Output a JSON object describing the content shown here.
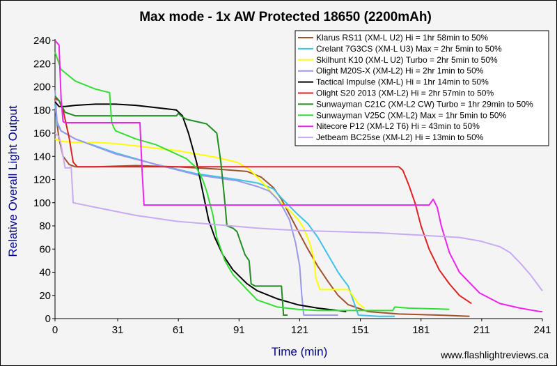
{
  "chart_data": {
    "type": "line",
    "title": "Max mode - 1x AW Protected 18650 (2200mAh)",
    "xlabel": "Time (min)",
    "ylabel": "Relative Overall Light Output",
    "xlim": [
      0,
      241
    ],
    "ylim": [
      0,
      240
    ],
    "xticks": [
      0,
      31,
      61,
      91,
      121,
      151,
      181,
      211,
      241
    ],
    "yticks": [
      0,
      20,
      40,
      60,
      80,
      100,
      120,
      140,
      160,
      180,
      200,
      220,
      240
    ],
    "grid": false,
    "legend_position": "top-right",
    "credit": "www.flashlightreviews.ca",
    "series": [
      {
        "name": "Klarus RS11 (XM-L U2) Hi = 1hr 58min to 50%",
        "color": "#a0522d",
        "x": [
          0,
          1,
          2,
          4,
          7,
          10,
          20,
          40,
          60,
          80,
          95,
          102,
          108,
          112,
          115,
          118,
          121,
          125,
          130,
          135,
          140,
          145,
          155,
          170,
          190,
          205
        ],
        "y": [
          190,
          168,
          155,
          140,
          133,
          131,
          131,
          132,
          131,
          129,
          127,
          122,
          113,
          103,
          93,
          83,
          73,
          60,
          45,
          32,
          20,
          12,
          6,
          4,
          3,
          2
        ]
      },
      {
        "name": "Crelant 7G3CS (XM-L U3) Max = 2hr 5min to 50%",
        "color": "#40c0e8",
        "x": [
          0,
          1,
          3,
          10,
          30,
          50,
          70,
          90,
          100,
          108,
          112,
          116,
          120,
          125,
          130,
          135,
          140,
          142,
          145,
          150,
          160,
          168
        ],
        "y": [
          185,
          168,
          162,
          155,
          143,
          133,
          125,
          120,
          117,
          112,
          104,
          97,
          90,
          82,
          70,
          55,
          40,
          35,
          28,
          3,
          2,
          2
        ]
      },
      {
        "name": "Skilhunt K10 (XM-L U2) Turbo = 2hr 5min to 50%",
        "color": "#ffff00",
        "x": [
          0,
          3,
          10,
          20,
          30,
          40,
          50,
          60,
          70,
          80,
          90,
          96,
          100,
          105,
          110,
          115,
          120,
          123,
          126,
          128,
          129,
          131,
          140,
          145,
          150,
          153
        ],
        "y": [
          155,
          153,
          152,
          152,
          151,
          149,
          147,
          145,
          142,
          139,
          135,
          129,
          122,
          113,
          103,
          95,
          86,
          78,
          65,
          52,
          35,
          25,
          25,
          25,
          13,
          9
        ]
      },
      {
        "name": "Olight M20S-X (XM-L2) Hi = 2hr 1min to 50%",
        "color": "#9999e6",
        "x": [
          0,
          1,
          3,
          10,
          30,
          50,
          70,
          90,
          100,
          106,
          110,
          113,
          116,
          119,
          121,
          122,
          123,
          124,
          130,
          140
        ],
        "y": [
          197,
          170,
          162,
          155,
          142,
          133,
          124,
          119,
          114,
          110,
          103,
          95,
          85,
          65,
          45,
          20,
          3,
          3,
          3,
          3
        ]
      },
      {
        "name": "Tactical Impulse (XM-L) Hi = 1hr 14min to 50%",
        "color": "#000000",
        "x": [
          0,
          1,
          2,
          5,
          10,
          20,
          30,
          40,
          50,
          60,
          63,
          66,
          70,
          73,
          76,
          79,
          83,
          88,
          95,
          100,
          110,
          120,
          130,
          140,
          144
        ],
        "y": [
          187,
          185,
          183,
          183,
          184,
          185,
          185,
          184,
          182,
          180,
          175,
          160,
          135,
          110,
          85,
          70,
          55,
          42,
          30,
          24,
          17,
          12,
          9,
          7,
          6
        ]
      },
      {
        "name": "Olight S20 2013 (XM-L2) Hi = 2hr 57min to 50%",
        "color": "#dd2222",
        "x": [
          0,
          2,
          4,
          7,
          9,
          11,
          20,
          60,
          100,
          140,
          170,
          172,
          175,
          178,
          181,
          185,
          190,
          195,
          200,
          206
        ],
        "y": [
          190,
          188,
          180,
          156,
          135,
          131,
          131,
          131,
          131,
          131,
          131,
          128,
          115,
          100,
          80,
          60,
          42,
          30,
          20,
          13
        ]
      },
      {
        "name": "Sunwayman C21C (XM-L2 CW) Turbo = 1hr 29min to 50%",
        "color": "#228b22",
        "x": [
          0,
          2,
          5,
          10,
          30,
          50,
          60,
          61,
          63,
          65,
          70,
          75,
          80,
          82,
          84,
          85,
          88,
          90,
          93,
          94,
          96,
          97,
          99,
          100,
          105,
          112,
          113,
          115
        ],
        "y": [
          192,
          188,
          178,
          175,
          175,
          175,
          175,
          177,
          174,
          172,
          170,
          168,
          160,
          135,
          100,
          80,
          78,
          75,
          60,
          55,
          50,
          30,
          28,
          28,
          28,
          28,
          3,
          3
        ]
      },
      {
        "name": "Sunwayman V25C (XM-L2) Max = 1hr 5min to 50%",
        "color": "#33dd33",
        "x": [
          0,
          1,
          3,
          10,
          20,
          27,
          28,
          29,
          30,
          40,
          50,
          55,
          60,
          65,
          70,
          73,
          75,
          78,
          80,
          84,
          88,
          95,
          100,
          110,
          120,
          130,
          150,
          167,
          168,
          175,
          195
        ],
        "y": [
          230,
          225,
          215,
          205,
          198,
          195,
          170,
          165,
          162,
          155,
          150,
          146,
          142,
          138,
          130,
          120,
          110,
          90,
          70,
          50,
          38,
          25,
          16,
          10,
          8,
          7,
          7,
          7,
          10,
          9,
          8
        ]
      },
      {
        "name": "Nitecore P12 (XM-L2 T6) Hi = 43min to 50%",
        "color": "#ee22ee",
        "x": [
          0,
          1,
          2,
          3,
          4,
          5,
          10,
          20,
          30,
          42,
          43,
          44,
          60,
          100,
          150,
          185,
          187,
          189,
          191,
          195,
          200,
          210,
          220,
          230,
          240,
          241
        ],
        "y": [
          240,
          238,
          236,
          190,
          170,
          169,
          169,
          169,
          169,
          169,
          130,
          98,
          98,
          98,
          98,
          98,
          103,
          96,
          80,
          57,
          40,
          22,
          13,
          9,
          6,
          6
        ]
      },
      {
        "name": "Jetbeam BC25se (XM-L2) Hi = 13min to 50%",
        "color": "#c8aaf0",
        "x": [
          0,
          2,
          3,
          4,
          5,
          6,
          7,
          8,
          9,
          20,
          40,
          60,
          80,
          100,
          120,
          140,
          160,
          180,
          200,
          210,
          220,
          225,
          230,
          235,
          238,
          241
        ],
        "y": [
          160,
          157,
          150,
          140,
          130,
          130,
          130,
          131,
          100,
          96,
          89,
          84,
          81,
          78,
          76,
          75,
          74,
          72,
          70,
          67,
          62,
          57,
          48,
          38,
          31,
          24
        ]
      }
    ]
  }
}
